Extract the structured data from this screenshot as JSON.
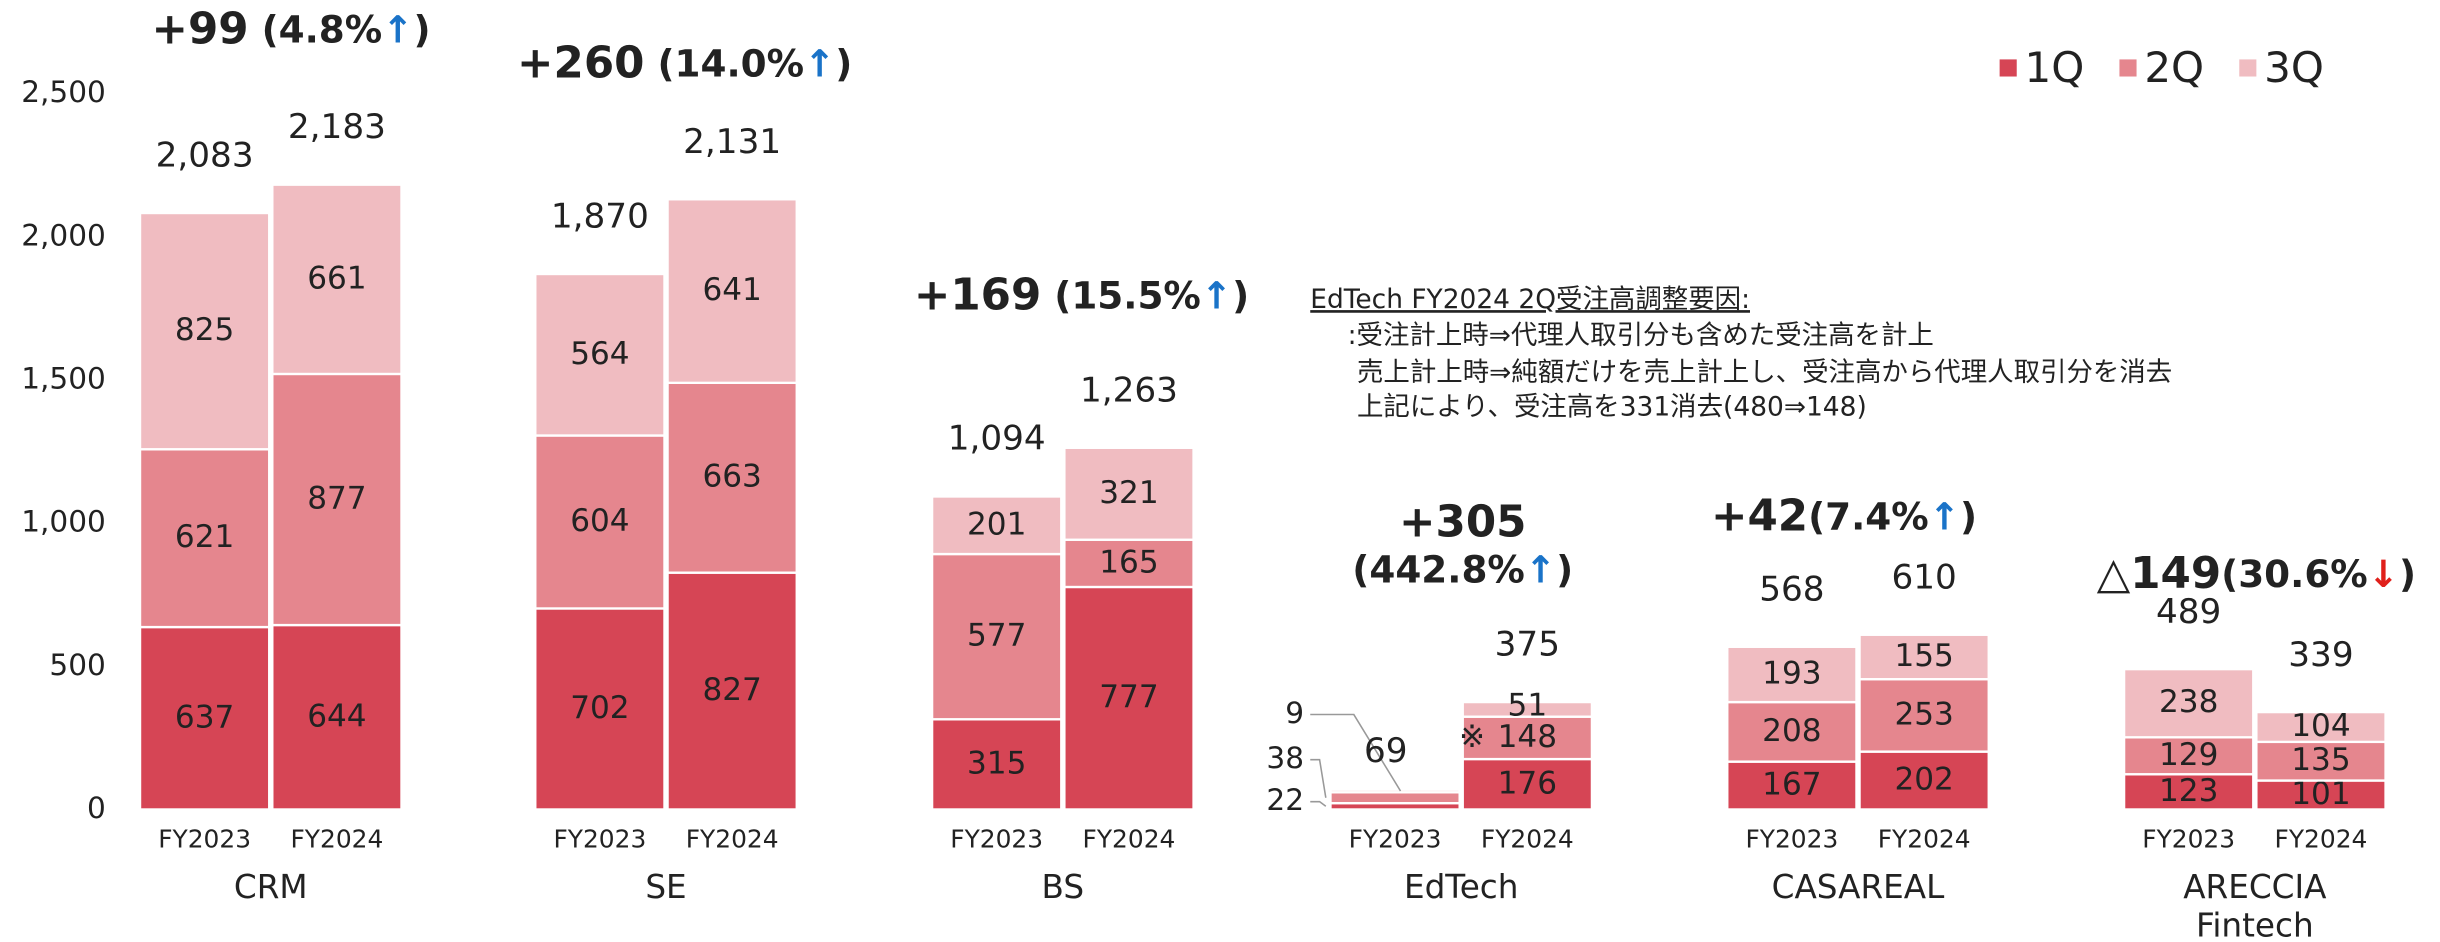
{
  "chart_data": {
    "type": "stacked_bar",
    "ylim": [
      0,
      2500
    ],
    "yticks": [
      0,
      500,
      {
        "value": 1000,
        "label": "1,000"
      },
      {
        "value": 1500,
        "label": "1,500"
      },
      {
        "value": 2000,
        "label": "2,000"
      },
      {
        "value": 2500,
        "label": "2,500"
      }
    ],
    "categories": [
      "FY2023",
      "FY2024",
      "FY2023",
      "FY2024",
      "FY2023",
      "FY2024",
      "FY2023",
      "FY2024",
      "FY2023",
      "FY2024",
      "FY2023",
      "FY2024"
    ],
    "groups": [
      {
        "label": [
          "CRM"
        ],
        "change": "+99",
        "rate": " (4.8%",
        "arrow": "↑",
        "close": ")",
        "arrow_color": "#1a73c8"
      },
      {
        "label": [
          "SE"
        ],
        "change": "+260",
        "rate": " (14.0%",
        "arrow": "↑",
        "close": ")",
        "arrow_color": "#1a73c8"
      },
      {
        "label": [
          "BS"
        ],
        "change": "+169",
        "rate": " (15.5%",
        "arrow": "↑",
        "close": ")",
        "arrow_color": "#1a73c8"
      },
      {
        "label": [
          "EdTech"
        ],
        "change": "+305",
        "rate": "(442.8%",
        "arrow": "↑",
        "close": ")",
        "arrow_color": "#1a73c8"
      },
      {
        "label": [
          "CASAREAL"
        ],
        "change": "+42",
        "rate": "(7.4%",
        "arrow": "↑",
        "close": ")",
        "arrow_color": "#1a73c8"
      },
      {
        "label": [
          "ARECCIA",
          "Fintech"
        ],
        "change": "△149",
        "rate": "(30.6%",
        "arrow": "↓",
        "close": ")",
        "arrow_color": "#e0201b"
      }
    ],
    "series": [
      {
        "name": "1Q",
        "color": "#d64555",
        "values": [
          637,
          644,
          702,
          827,
          315,
          777,
          22,
          176,
          167,
          202,
          123,
          101
        ]
      },
      {
        "name": "2Q",
        "color": "#e5868e",
        "values": [
          621,
          877,
          604,
          663,
          577,
          165,
          38,
          148,
          208,
          253,
          129,
          135
        ]
      },
      {
        "name": "3Q",
        "color": "#f0bcc1",
        "values": [
          825,
          661,
          564,
          641,
          201,
          321,
          9,
          51,
          193,
          155,
          238,
          104
        ]
      }
    ],
    "totals": [
      2083,
      2183,
      1870,
      2131,
      1094,
      1263,
      69,
      375,
      568,
      610,
      489,
      339
    ],
    "total_labels": [
      "2,083",
      "2,183",
      "1,870",
      "2,131",
      "1,094",
      "1,263",
      "69",
      "375",
      "568",
      "610",
      "489",
      "339"
    ],
    "note_mark": "※",
    "note": [
      "EdTech FY2024 2Q受注高調整要因:",
      ":受注計上時⇒代理人取引分も含めた受注高を計上",
      "売上計上時⇒純額だけを売上計上し、受注高から代理人取引分を消去",
      "上記により、受注高を331消去(480⇒148)"
    ],
    "legend": "top-right"
  }
}
